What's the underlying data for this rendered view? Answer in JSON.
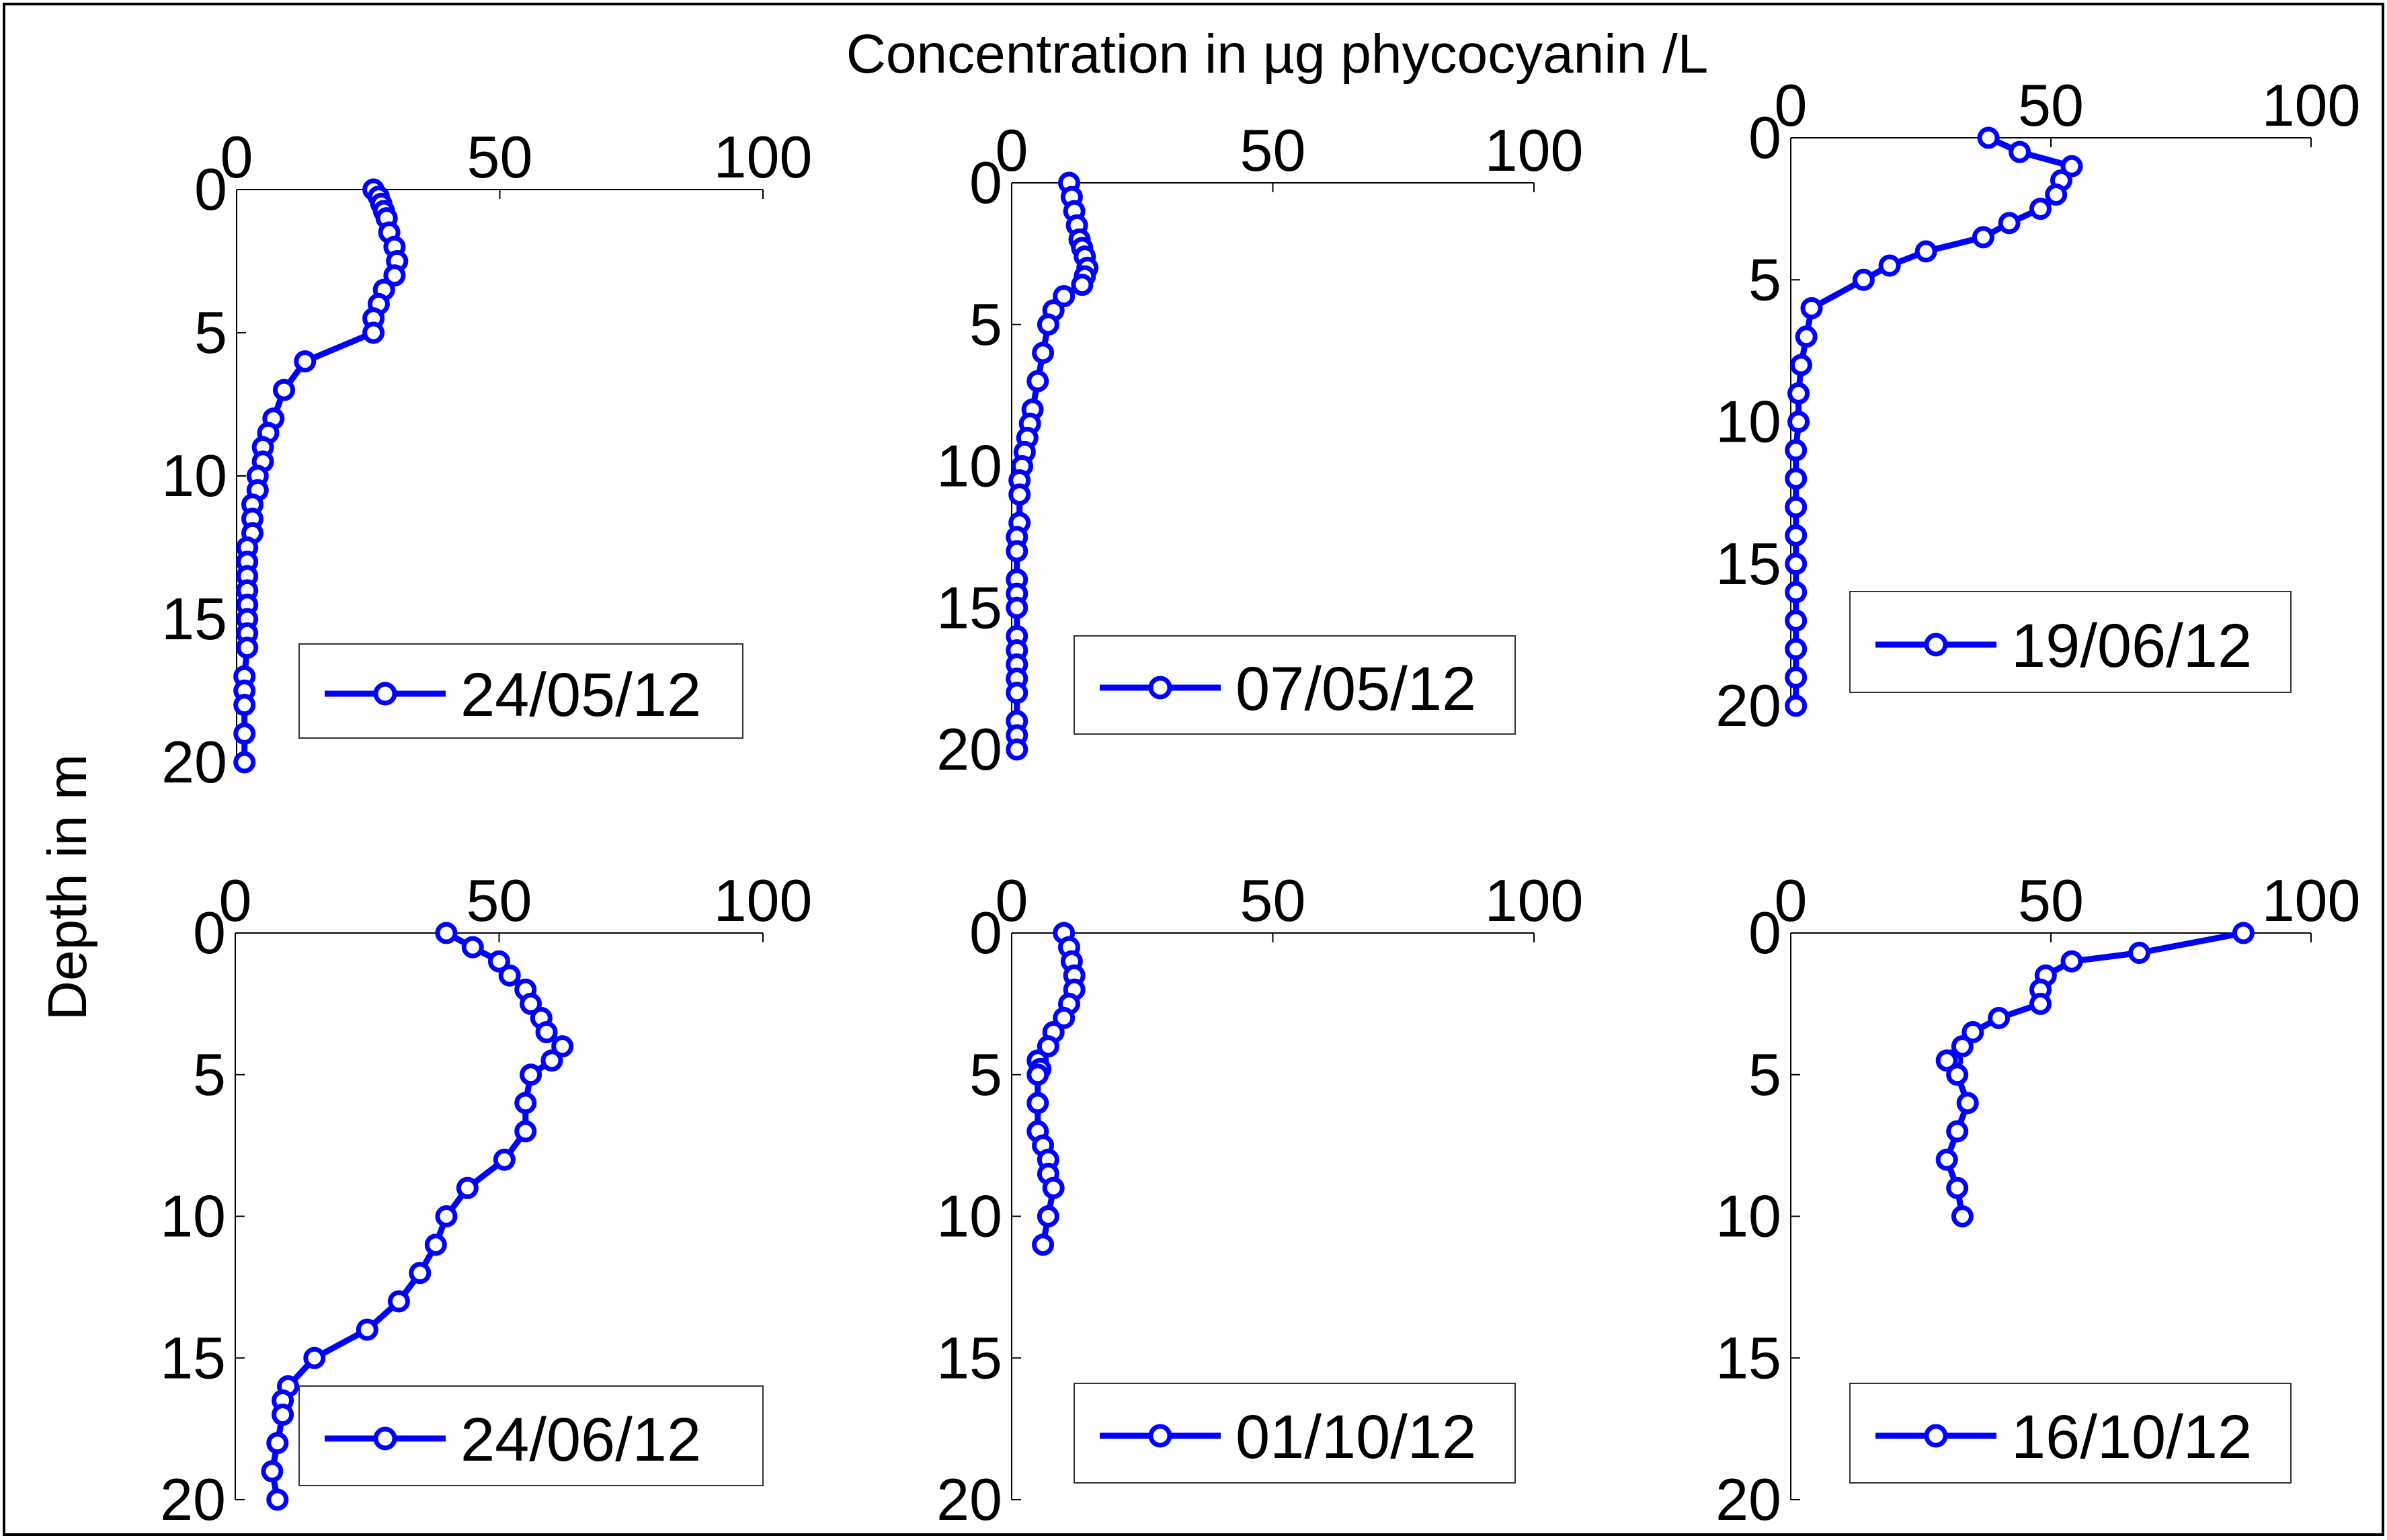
{
  "title": "Concentration in µg phycocyanin /L",
  "ylabel": "Depth  in m",
  "colors": {
    "series": "#0000ff",
    "frame": "#000000",
    "background": "#ffffff"
  },
  "chart_data": [
    {
      "type": "line",
      "legend": "24/05/12",
      "legend_position": "bottom-right",
      "xlim": [
        0,
        100
      ],
      "ylim": [
        0,
        20
      ],
      "y_reversed": true,
      "xticks": [
        "0",
        "50",
        "100"
      ],
      "yticks": [
        "0",
        "5",
        "10",
        "15",
        "20"
      ],
      "x": [
        26,
        27,
        27.5,
        28,
        28.5,
        29,
        30,
        30.5,
        30,
        28,
        27,
        26,
        26,
        13,
        9,
        7,
        6,
        5,
        5,
        4,
        4,
        3,
        3,
        3,
        2,
        2,
        2,
        2,
        2,
        2,
        2,
        2,
        1.5,
        1.5,
        1.5,
        1.5,
        1.5
      ],
      "y": [
        0,
        0.25,
        0.5,
        0.75,
        1,
        1.5,
        2,
        2.5,
        3,
        3.5,
        4,
        4.5,
        5,
        6,
        7,
        8,
        8.5,
        9,
        9.5,
        10,
        10.5,
        11,
        11.5,
        12,
        12.5,
        13,
        13.5,
        14,
        14.5,
        15,
        15.5,
        16,
        17,
        17.5,
        18,
        19,
        20
      ]
    },
    {
      "type": "line",
      "legend": "07/05/12",
      "legend_position": "bottom-right",
      "xlim": [
        0,
        100
      ],
      "ylim": [
        0,
        20
      ],
      "y_reversed": true,
      "xticks": [
        "0",
        "50",
        "100"
      ],
      "yticks": [
        "0",
        "5",
        "10",
        "15",
        "20"
      ],
      "x": [
        11,
        11.5,
        12,
        12.5,
        13,
        13.5,
        14,
        14.5,
        14,
        13.5,
        10,
        8,
        7,
        6,
        5,
        4,
        3.5,
        3,
        2.5,
        2,
        1.5,
        1.5,
        1.5,
        1,
        1,
        1,
        1,
        1,
        1,
        1,
        1,
        1,
        1,
        1,
        1,
        1
      ],
      "y": [
        0,
        0.5,
        1,
        1.5,
        2,
        2.3,
        2.6,
        3,
        3.3,
        3.6,
        4,
        4.5,
        5,
        6,
        7,
        8,
        8.5,
        9,
        9.5,
        10,
        10.5,
        11,
        12,
        12.5,
        13,
        14,
        14.5,
        15,
        16,
        16.5,
        17,
        17.5,
        18,
        19,
        19.5,
        20
      ]
    },
    {
      "type": "line",
      "legend": "19/06/12",
      "legend_position": "bottom-right",
      "xlim": [
        0,
        100
      ],
      "ylim": [
        0,
        20
      ],
      "y_reversed": true,
      "xticks": [
        "0",
        "50",
        "100"
      ],
      "yticks": [
        "0",
        "5",
        "10",
        "15",
        "20"
      ],
      "x": [
        38,
        44,
        54,
        52,
        51,
        48,
        42,
        37,
        26,
        19,
        14,
        4,
        3,
        2,
        1.5,
        1.5,
        1,
        1,
        1,
        1,
        1,
        1,
        1,
        1,
        1,
        1
      ],
      "y": [
        0,
        0.5,
        1,
        1.5,
        2,
        2.5,
        3,
        3.5,
        4,
        4.5,
        5,
        6,
        7,
        8,
        9,
        10,
        11,
        12,
        13,
        14,
        15,
        16,
        17,
        18,
        19,
        20
      ]
    },
    {
      "type": "line",
      "legend": "24/06/12",
      "legend_position": "bottom-right",
      "xlim": [
        0,
        100
      ],
      "ylim": [
        0,
        20
      ],
      "y_reversed": true,
      "xticks": [
        "0",
        "50",
        "100"
      ],
      "yticks": [
        "0",
        "5",
        "10",
        "15",
        "20"
      ],
      "x": [
        40,
        45,
        50,
        52,
        55,
        56,
        58,
        59,
        62,
        60,
        56,
        55,
        55,
        51,
        44,
        40,
        38,
        35,
        31,
        25,
        15,
        10,
        9,
        9,
        8,
        7,
        8
      ],
      "y": [
        0,
        0.5,
        1,
        1.5,
        2,
        2.5,
        3,
        3.5,
        4,
        4.5,
        5,
        6,
        7,
        8,
        9,
        10,
        11,
        12,
        13,
        14,
        15,
        16,
        16.5,
        17,
        18,
        19,
        20
      ]
    },
    {
      "type": "line",
      "legend": "01/10/12",
      "legend_position": "bottom-right",
      "xlim": [
        0,
        100
      ],
      "ylim": [
        0,
        20
      ],
      "y_reversed": true,
      "xticks": [
        "0",
        "50",
        "100"
      ],
      "yticks": [
        "0",
        "5",
        "10",
        "15",
        "20"
      ],
      "x": [
        10,
        11,
        11.5,
        12,
        12,
        11,
        10,
        8,
        7,
        5,
        5.5,
        5,
        5,
        5,
        6,
        7,
        7,
        8,
        7,
        6
      ],
      "y": [
        0,
        0.5,
        1,
        1.5,
        2,
        2.5,
        3,
        3.5,
        4,
        4.5,
        4.8,
        5,
        6,
        7,
        7.5,
        8,
        8.5,
        9,
        10,
        11
      ]
    },
    {
      "type": "line",
      "legend": "16/10/12",
      "legend_position": "bottom-right",
      "xlim": [
        0,
        100
      ],
      "ylim": [
        0,
        20
      ],
      "y_reversed": true,
      "xticks": [
        "0",
        "50",
        "100"
      ],
      "yticks": [
        "0",
        "5",
        "10",
        "15",
        "20"
      ],
      "x": [
        87,
        67,
        54,
        49,
        48,
        48,
        40,
        35,
        33,
        31,
        30,
        32,
        34,
        32,
        30,
        32,
        33
      ],
      "y": [
        0,
        0.7,
        1,
        1.5,
        2,
        2.5,
        3,
        3.5,
        4,
        4.5,
        4.5,
        5,
        6,
        7,
        8,
        9,
        10
      ]
    }
  ]
}
